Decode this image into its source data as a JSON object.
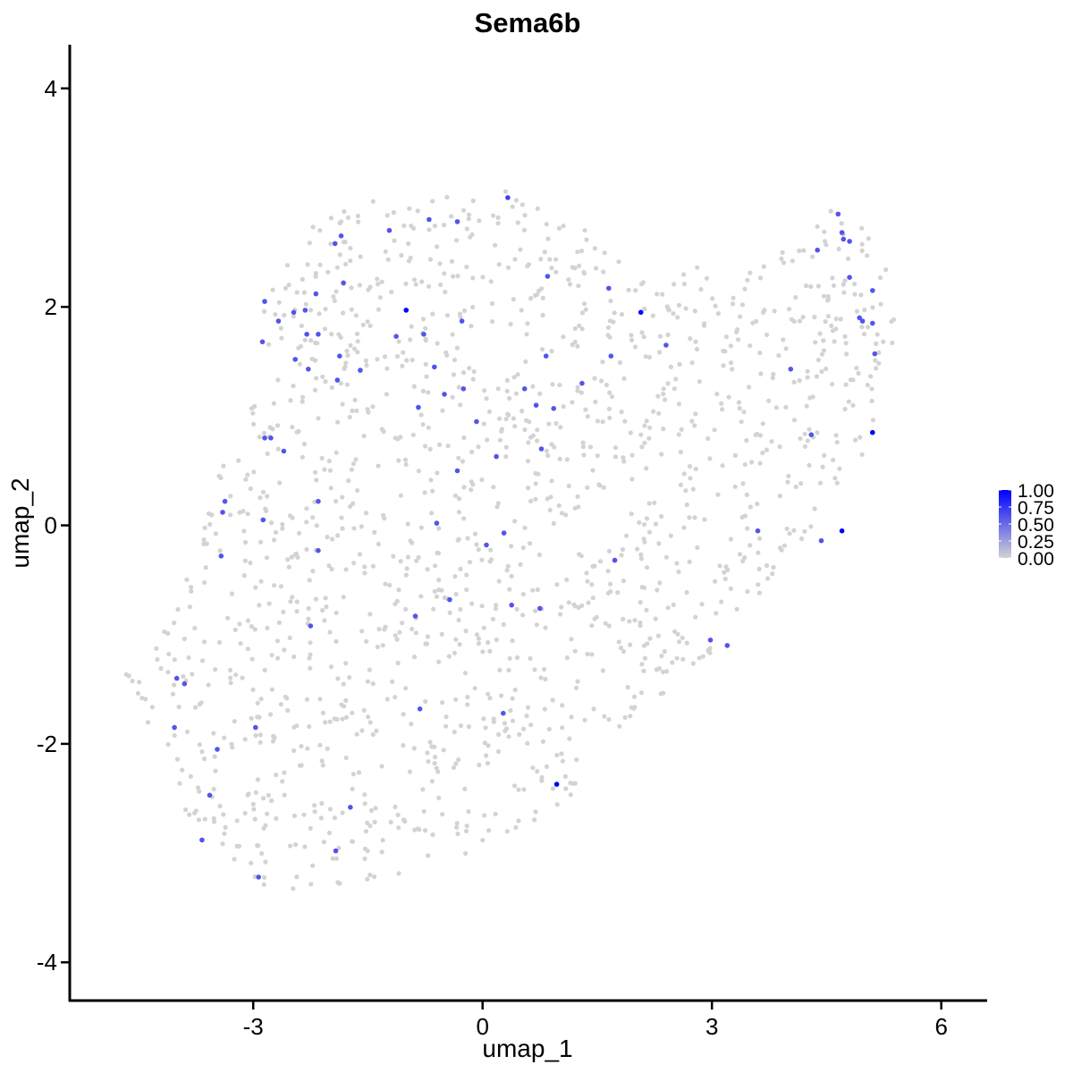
{
  "chart_data": {
    "type": "scatter",
    "title": "Sema6b",
    "xlabel": "umap_1",
    "ylabel": "umap_2",
    "xlim": [
      -5.4,
      6.6
    ],
    "ylim": [
      -4.35,
      4.4
    ],
    "x_ticks": [
      -3,
      0,
      3,
      6
    ],
    "y_ticks": [
      -4,
      -2,
      0,
      2,
      4
    ],
    "x_tick_labels": [
      "-3",
      "0",
      "3",
      "6"
    ],
    "y_tick_labels": [
      "-4",
      "-2",
      "0",
      "2",
      "4"
    ],
    "grid": false,
    "legend": {
      "placement": "right",
      "type": "colorbar",
      "labels": [
        "1.00",
        "0.75",
        "0.50",
        "0.25",
        "0.00"
      ],
      "values": [
        1.0,
        0.75,
        0.5,
        0.25,
        0.0
      ],
      "color_low": "#d3d3d3",
      "color_high": "#0000ff"
    },
    "background_cells": {
      "count": 1500,
      "expression": 0,
      "color": "#d3d3d3",
      "region_outline": [
        [
          -4.75,
          -1.25
        ],
        [
          -4.4,
          -0.9
        ],
        [
          -3.8,
          -0.4
        ],
        [
          -3.6,
          0.3
        ],
        [
          -3.2,
          0.9
        ],
        [
          -2.9,
          1.4
        ],
        [
          -2.9,
          2.05
        ],
        [
          -2.2,
          2.8
        ],
        [
          -1.6,
          2.95
        ],
        [
          -0.5,
          3.05
        ],
        [
          0.3,
          3.12
        ],
        [
          0.9,
          2.9
        ],
        [
          1.6,
          2.75
        ],
        [
          2.2,
          2.3
        ],
        [
          2.9,
          2.4
        ],
        [
          3.6,
          2.45
        ],
        [
          4.2,
          2.55
        ],
        [
          4.6,
          3.05
        ],
        [
          5.0,
          2.7
        ],
        [
          5.35,
          2.35
        ],
        [
          5.4,
          1.7
        ],
        [
          5.2,
          0.9
        ],
        [
          4.6,
          0.2
        ],
        [
          4.0,
          -0.3
        ],
        [
          3.6,
          -0.7
        ],
        [
          3.0,
          -1.15
        ],
        [
          2.3,
          -1.6
        ],
        [
          1.4,
          -2.1
        ],
        [
          1.0,
          -2.7
        ],
        [
          0.6,
          -2.9
        ],
        [
          -0.2,
          -3.0
        ],
        [
          -1.4,
          -3.25
        ],
        [
          -2.1,
          -3.35
        ],
        [
          -2.6,
          -3.5
        ],
        [
          -3.4,
          -3.0
        ],
        [
          -3.9,
          -2.6
        ],
        [
          -4.3,
          -2.0
        ],
        [
          -4.5,
          -1.6
        ]
      ]
    },
    "expressed_cells": [
      {
        "x": -1.0,
        "y": 1.97,
        "v": 1.0
      },
      {
        "x": 2.07,
        "y": 1.95,
        "v": 1.0
      },
      {
        "x": 5.1,
        "y": 0.85,
        "v": 1.0
      },
      {
        "x": 4.7,
        "y": -0.05,
        "v": 1.0
      },
      {
        "x": 0.97,
        "y": -2.37,
        "v": 1.0
      },
      {
        "x": 0.33,
        "y": 3.0,
        "v": 0.7
      },
      {
        "x": -1.85,
        "y": 2.65,
        "v": 0.6
      },
      {
        "x": -1.93,
        "y": 2.58,
        "v": 0.6
      },
      {
        "x": -1.22,
        "y": 2.7,
        "v": 0.6
      },
      {
        "x": -0.7,
        "y": 2.8,
        "v": 0.6
      },
      {
        "x": -0.33,
        "y": 2.78,
        "v": 0.6
      },
      {
        "x": -2.85,
        "y": 2.05,
        "v": 0.6
      },
      {
        "x": -2.47,
        "y": 1.95,
        "v": 0.6
      },
      {
        "x": -2.32,
        "y": 1.97,
        "v": 0.6
      },
      {
        "x": -1.82,
        "y": 2.22,
        "v": 0.6
      },
      {
        "x": -2.18,
        "y": 2.12,
        "v": 0.6
      },
      {
        "x": -2.67,
        "y": 1.87,
        "v": 0.6
      },
      {
        "x": -2.88,
        "y": 1.68,
        "v": 0.6
      },
      {
        "x": -2.3,
        "y": 1.75,
        "v": 0.6
      },
      {
        "x": -2.15,
        "y": 1.75,
        "v": 0.6
      },
      {
        "x": -1.87,
        "y": 1.55,
        "v": 0.6
      },
      {
        "x": -2.45,
        "y": 1.52,
        "v": 0.6
      },
      {
        "x": -2.28,
        "y": 1.43,
        "v": 0.6
      },
      {
        "x": -1.9,
        "y": 1.33,
        "v": 0.6
      },
      {
        "x": -1.6,
        "y": 1.42,
        "v": 0.6
      },
      {
        "x": -1.13,
        "y": 1.73,
        "v": 0.6
      },
      {
        "x": -0.77,
        "y": 1.75,
        "v": 0.6
      },
      {
        "x": -0.27,
        "y": 1.87,
        "v": 0.6
      },
      {
        "x": -0.63,
        "y": 1.45,
        "v": 0.6
      },
      {
        "x": -0.5,
        "y": 1.2,
        "v": 0.6
      },
      {
        "x": -0.25,
        "y": 1.25,
        "v": 0.6
      },
      {
        "x": -0.84,
        "y": 1.08,
        "v": 0.6
      },
      {
        "x": -0.08,
        "y": 0.95,
        "v": 0.6
      },
      {
        "x": 0.85,
        "y": 2.28,
        "v": 0.6
      },
      {
        "x": 1.65,
        "y": 2.17,
        "v": 0.6
      },
      {
        "x": 0.83,
        "y": 1.55,
        "v": 0.6
      },
      {
        "x": 1.68,
        "y": 1.55,
        "v": 0.6
      },
      {
        "x": 2.4,
        "y": 1.65,
        "v": 0.6
      },
      {
        "x": 0.55,
        "y": 1.25,
        "v": 0.6
      },
      {
        "x": 0.7,
        "y": 1.1,
        "v": 0.6
      },
      {
        "x": 0.93,
        "y": 1.07,
        "v": 0.6
      },
      {
        "x": 1.3,
        "y": 1.3,
        "v": 0.6
      },
      {
        "x": 0.77,
        "y": 0.7,
        "v": 0.6
      },
      {
        "x": 0.18,
        "y": 0.63,
        "v": 0.6
      },
      {
        "x": -0.33,
        "y": 0.5,
        "v": 0.6
      },
      {
        "x": -2.77,
        "y": 0.8,
        "v": 0.6
      },
      {
        "x": -2.85,
        "y": 0.8,
        "v": 0.6
      },
      {
        "x": -2.6,
        "y": 0.68,
        "v": 0.6
      },
      {
        "x": -3.37,
        "y": 0.22,
        "v": 0.6
      },
      {
        "x": -3.4,
        "y": 0.12,
        "v": 0.6
      },
      {
        "x": -2.87,
        "y": 0.05,
        "v": 0.6
      },
      {
        "x": -2.15,
        "y": 0.22,
        "v": 0.6
      },
      {
        "x": -3.42,
        "y": -0.28,
        "v": 0.6
      },
      {
        "x": -2.15,
        "y": -0.23,
        "v": 0.6
      },
      {
        "x": -0.6,
        "y": 0.02,
        "v": 0.6
      },
      {
        "x": 0.05,
        "y": -0.18,
        "v": 0.6
      },
      {
        "x": 0.28,
        "y": -0.07,
        "v": 0.6
      },
      {
        "x": 1.73,
        "y": -0.32,
        "v": 0.6
      },
      {
        "x": -0.43,
        "y": -0.68,
        "v": 0.6
      },
      {
        "x": 0.38,
        "y": -0.73,
        "v": 0.6
      },
      {
        "x": 0.75,
        "y": -0.76,
        "v": 0.6
      },
      {
        "x": -0.88,
        "y": -0.83,
        "v": 0.6
      },
      {
        "x": -2.25,
        "y": -0.92,
        "v": 0.6
      },
      {
        "x": 3.6,
        "y": -0.05,
        "v": 0.6
      },
      {
        "x": 4.43,
        "y": -0.14,
        "v": 0.6
      },
      {
        "x": 2.98,
        "y": -1.05,
        "v": 0.6
      },
      {
        "x": 3.2,
        "y": -1.1,
        "v": 0.6
      },
      {
        "x": 4.3,
        "y": 0.83,
        "v": 0.6
      },
      {
        "x": 4.03,
        "y": 1.43,
        "v": 0.6
      },
      {
        "x": 4.38,
        "y": 2.52,
        "v": 0.6
      },
      {
        "x": 4.65,
        "y": 2.85,
        "v": 0.6
      },
      {
        "x": 4.7,
        "y": 2.68,
        "v": 0.6
      },
      {
        "x": 4.72,
        "y": 2.62,
        "v": 0.6
      },
      {
        "x": 4.8,
        "y": 2.6,
        "v": 0.6
      },
      {
        "x": 4.8,
        "y": 2.27,
        "v": 0.6
      },
      {
        "x": 5.1,
        "y": 2.15,
        "v": 0.6
      },
      {
        "x": 4.93,
        "y": 1.9,
        "v": 0.6
      },
      {
        "x": 4.97,
        "y": 1.87,
        "v": 0.6
      },
      {
        "x": 5.1,
        "y": 1.85,
        "v": 0.6
      },
      {
        "x": 5.13,
        "y": 1.57,
        "v": 0.6
      },
      {
        "x": -4.0,
        "y": -1.4,
        "v": 0.6
      },
      {
        "x": -3.9,
        "y": -1.45,
        "v": 0.6
      },
      {
        "x": -4.03,
        "y": -1.85,
        "v": 0.6
      },
      {
        "x": -2.97,
        "y": -1.85,
        "v": 0.6
      },
      {
        "x": -0.82,
        "y": -1.68,
        "v": 0.6
      },
      {
        "x": 0.27,
        "y": -1.72,
        "v": 0.6
      },
      {
        "x": -3.47,
        "y": -2.05,
        "v": 0.6
      },
      {
        "x": -3.57,
        "y": -2.47,
        "v": 0.6
      },
      {
        "x": -1.73,
        "y": -2.58,
        "v": 0.6
      },
      {
        "x": -3.67,
        "y": -2.88,
        "v": 0.6
      },
      {
        "x": -1.92,
        "y": -2.98,
        "v": 0.6
      },
      {
        "x": -2.93,
        "y": -3.22,
        "v": 0.6
      }
    ]
  }
}
